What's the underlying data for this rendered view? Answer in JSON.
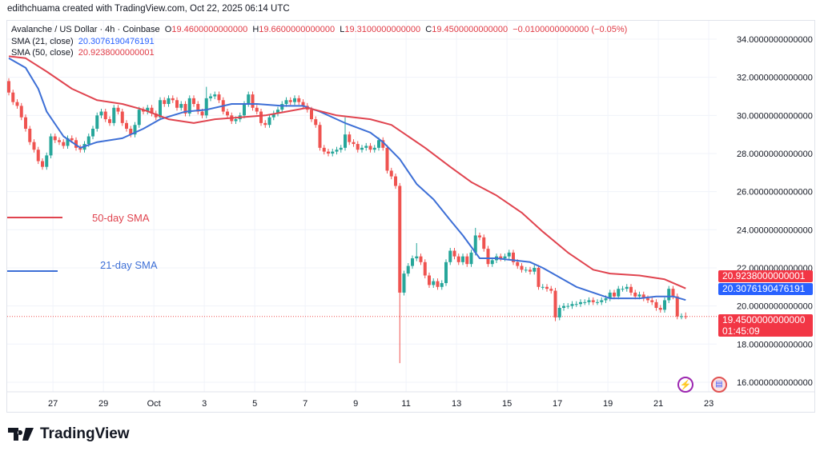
{
  "credit": "edithchuama created with TradingView.com, Oct 22, 2025 06:14 UTC",
  "legend": {
    "symbol": "Avalanche / US Dollar · 4h · Coinbase",
    "o_label": "O",
    "o": "19.4600000000000",
    "h_label": "H",
    "h": "19.6600000000000",
    "l_label": "L",
    "l": "19.3100000000000",
    "c_label": "C",
    "c": "19.4500000000000",
    "change": "−0.0100000000000 (−0.05%)",
    "sma21_label": "SMA (21, close)",
    "sma21": "20.3076190476191",
    "sma50_label": "SMA (50, close)",
    "sma50": "20.9238000000001"
  },
  "annotations": {
    "sma50": "50-day SMA",
    "sma21": "21-day SMA"
  },
  "price_tags": {
    "sma50": "20.9238000000001",
    "sma21": "20.3076190476191",
    "last": "19.4500000000000",
    "countdown": "01:45:09"
  },
  "brand": "TradingView",
  "colors": {
    "up": "#26a69a",
    "down": "#ef5350",
    "sma21": "#3d6fd6",
    "sma50": "#e0444f",
    "grid": "#f0f3fa"
  },
  "chart_data": {
    "type": "candlestick",
    "title": "Avalanche / US Dollar · 4h · Coinbase",
    "ylim": [
      15,
      35
    ],
    "y_ticks": [
      "34.0000000000000",
      "32.0000000000000",
      "30.0000000000000",
      "28.0000000000000",
      "26.0000000000000",
      "24.0000000000000",
      "22.0000000000000",
      "20.0000000000000",
      "18.0000000000000",
      "16.0000000000000"
    ],
    "y_tick_values": [
      34,
      32,
      30,
      28,
      26,
      24,
      22,
      20,
      18,
      16
    ],
    "x_ticks": [
      "27",
      "29",
      "Oct",
      "3",
      "5",
      "7",
      "9",
      "11",
      "13",
      "15",
      "17",
      "19",
      "21",
      "23"
    ],
    "first_open": 31.8,
    "closes": [
      31.2,
      30.7,
      30.5,
      29.9,
      29.3,
      28.6,
      28.2,
      27.6,
      27.3,
      27.9,
      28.9,
      28.7,
      28.6,
      28.4,
      28.8,
      28.7,
      28.3,
      28.2,
      28.5,
      28.9,
      29.3,
      30.0,
      30.2,
      29.8,
      29.6,
      30.4,
      30.2,
      29.6,
      29.3,
      29.0,
      29.5,
      30.3,
      30.2,
      30.4,
      30.1,
      29.9,
      30.8,
      30.6,
      30.9,
      30.8,
      30.4,
      30.6,
      30.1,
      30.9,
      30.6,
      30.2,
      30.0,
      30.9,
      31.0,
      31.1,
      30.8,
      30.2,
      30.0,
      29.7,
      29.8,
      30.0,
      30.6,
      31.1,
      30.4,
      30.2,
      29.6,
      29.5,
      29.9,
      30.1,
      30.3,
      30.6,
      30.8,
      30.7,
      30.9,
      30.7,
      30.5,
      30.3,
      29.8,
      29.5,
      28.3,
      28.1,
      28.0,
      28.1,
      28.2,
      28.3,
      29.0,
      28.6,
      28.5,
      28.2,
      28.3,
      28.4,
      28.2,
      28.3,
      28.7,
      28.3,
      27.1,
      26.8,
      26.3,
      20.7,
      21.7,
      22.1,
      22.5,
      22.6,
      22.3,
      21.6,
      21.1,
      21.3,
      21.0,
      21.2,
      22.3,
      22.9,
      22.6,
      22.3,
      22.6,
      22.2,
      22.8,
      23.7,
      23.6,
      23.0,
      22.2,
      22.4,
      22.6,
      22.5,
      22.6,
      22.8,
      22.3,
      22.1,
      21.9,
      21.9,
      21.8,
      22.0,
      21.0,
      21.0,
      20.9,
      20.8,
      19.4,
      19.9,
      20.0,
      20.0,
      20.1,
      20.1,
      20.2,
      20.2,
      20.3,
      20.2,
      20.2,
      20.3,
      20.4,
      20.7,
      20.5,
      20.9,
      20.9,
      21.0,
      20.7,
      20.5,
      20.6,
      20.4,
      20.3,
      20.2,
      19.9,
      19.8,
      20.3,
      20.9,
      20.5,
      19.45,
      19.46,
      19.45
    ],
    "notable_lows": [
      [
        93,
        17.0
      ],
      [
        130,
        19.2
      ]
    ],
    "notable_highs": [
      [
        80,
        29.9
      ],
      [
        47,
        31.5
      ],
      [
        111,
        24.1
      ],
      [
        97,
        23.3
      ]
    ],
    "last_candle": {
      "o": 19.46,
      "h": 19.66,
      "l": 19.31,
      "c": 19.45
    },
    "series": [
      {
        "name": "SMA (21, close)",
        "points": [
          [
            0,
            33.0
          ],
          [
            4,
            32.5
          ],
          [
            7,
            31.4
          ],
          [
            9,
            30.2
          ],
          [
            13,
            28.9
          ],
          [
            17,
            28.3
          ],
          [
            21,
            28.6
          ],
          [
            27,
            28.8
          ],
          [
            32,
            29.3
          ],
          [
            36,
            29.8
          ],
          [
            42,
            30.2
          ],
          [
            47,
            30.3
          ],
          [
            53,
            30.6
          ],
          [
            59,
            30.6
          ],
          [
            65,
            30.5
          ],
          [
            70,
            30.5
          ],
          [
            74,
            30.2
          ],
          [
            80,
            29.6
          ],
          [
            86,
            29.1
          ],
          [
            89,
            28.6
          ],
          [
            93,
            27.7
          ],
          [
            97,
            26.4
          ],
          [
            101,
            25.6
          ],
          [
            105,
            24.5
          ],
          [
            108,
            23.7
          ],
          [
            112,
            22.5
          ],
          [
            116,
            22.5
          ],
          [
            120,
            22.4
          ],
          [
            124,
            22.3
          ],
          [
            127,
            22.0
          ],
          [
            131,
            21.5
          ],
          [
            135,
            21.0
          ],
          [
            139,
            20.7
          ],
          [
            143,
            20.4
          ],
          [
            147,
            20.4
          ],
          [
            150,
            20.4
          ],
          [
            154,
            20.5
          ],
          [
            158,
            20.5
          ],
          [
            161,
            20.31
          ]
        ]
      },
      {
        "name": "SMA (50, close)",
        "points": [
          [
            0,
            33.1
          ],
          [
            4,
            33.0
          ],
          [
            9,
            32.3
          ],
          [
            15,
            31.4
          ],
          [
            21,
            30.8
          ],
          [
            27,
            30.6
          ],
          [
            32,
            30.3
          ],
          [
            38,
            29.8
          ],
          [
            44,
            29.6
          ],
          [
            49,
            29.8
          ],
          [
            55,
            29.9
          ],
          [
            61,
            30.0
          ],
          [
            66,
            30.2
          ],
          [
            71,
            30.4
          ],
          [
            78,
            30.0
          ],
          [
            86,
            29.8
          ],
          [
            91,
            29.5
          ],
          [
            95,
            28.9
          ],
          [
            99,
            28.3
          ],
          [
            105,
            27.3
          ],
          [
            110,
            26.5
          ],
          [
            116,
            25.8
          ],
          [
            122,
            24.9
          ],
          [
            127,
            23.9
          ],
          [
            133,
            22.8
          ],
          [
            139,
            21.9
          ],
          [
            143,
            21.7
          ],
          [
            150,
            21.6
          ],
          [
            156,
            21.4
          ],
          [
            161,
            20.92
          ]
        ]
      }
    ]
  }
}
